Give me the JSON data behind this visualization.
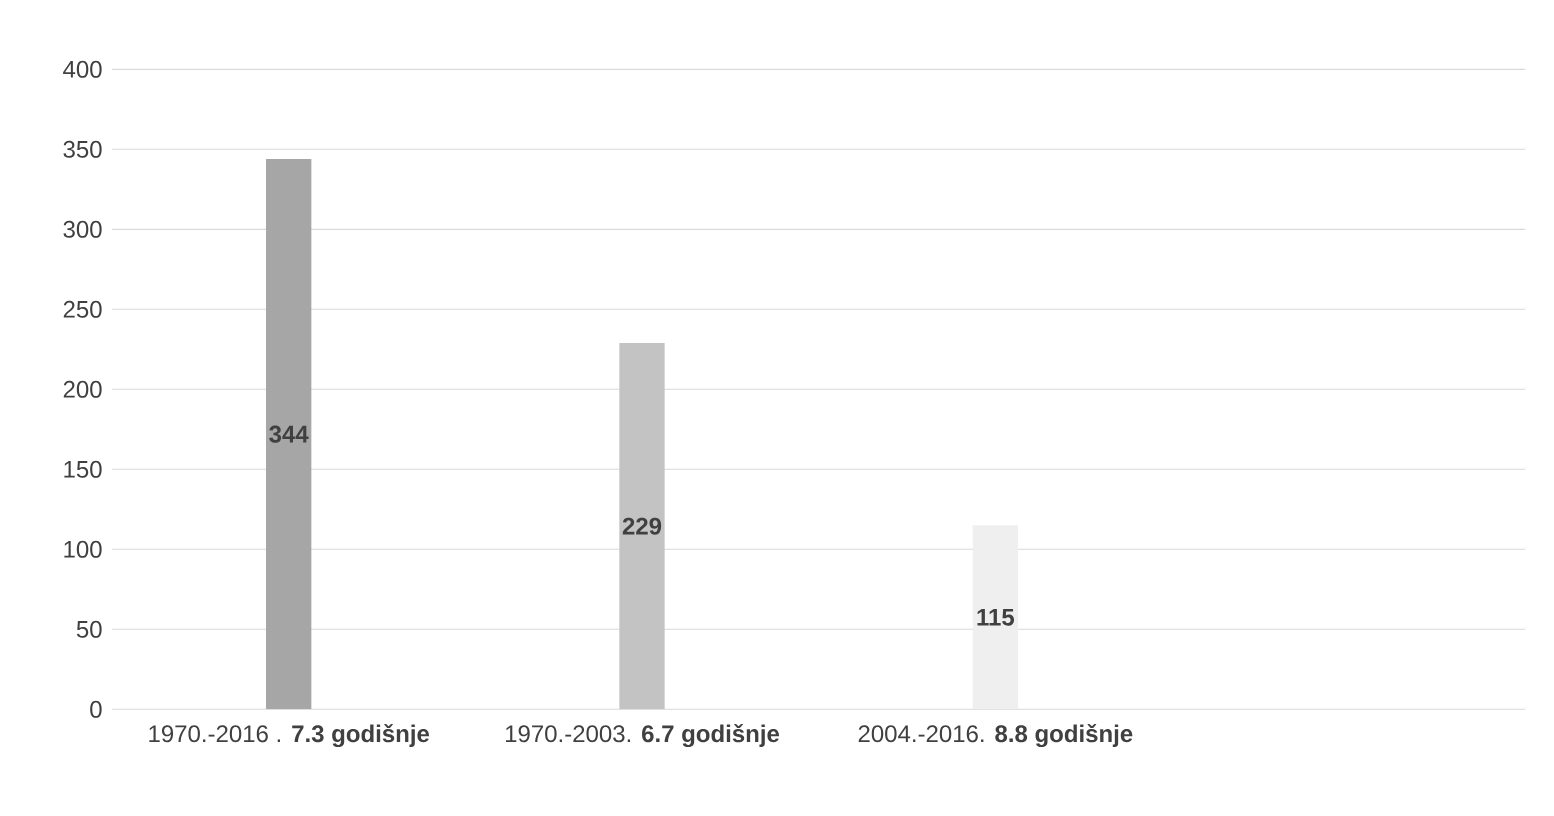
{
  "chart_data": {
    "type": "bar",
    "categories": [
      "1970.-2016 . **7.3 godišnje**",
      "1970.-2003. **6.7 godišnje**",
      "2004.-2016. **8.8 godišnje**"
    ],
    "values": [
      344,
      229,
      115
    ],
    "colors": [
      "#a6a6a6",
      "#c3c3c3",
      "#efefef"
    ],
    "ylim": [
      0,
      400
    ],
    "yticks": [
      0,
      50,
      100,
      150,
      200,
      250,
      300,
      350,
      400
    ],
    "grid": "y",
    "data_labels": true
  }
}
